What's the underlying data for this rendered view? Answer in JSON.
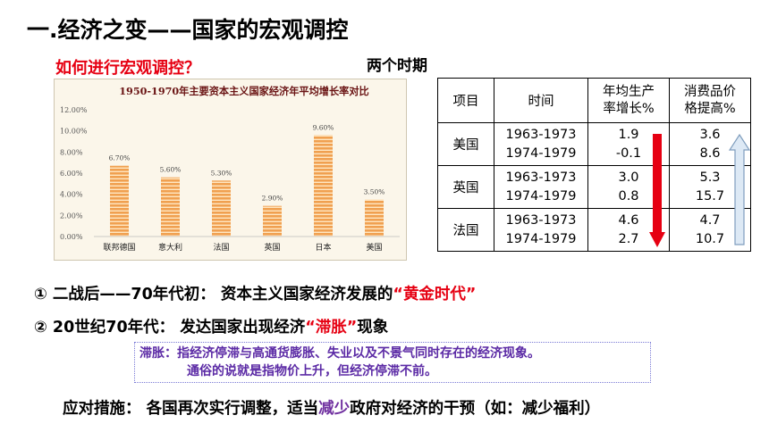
{
  "title": "一.经济之变——国家的宏观调控",
  "question": "如何进行宏观调控？",
  "periods_label": "两个时期",
  "chart_data": {
    "type": "bar",
    "title": "1950-1970年主要资本主义国家经济年平均增长率对比",
    "categories": [
      "联邦德国",
      "意大利",
      "法国",
      "英国",
      "日本",
      "美国"
    ],
    "values": [
      6.7,
      5.6,
      5.3,
      2.9,
      9.6,
      3.5
    ],
    "data_labels": [
      "6.70%",
      "5.60%",
      "5.30%",
      "2.90%",
      "9.60%",
      "3.50%"
    ],
    "yticks": [
      "0.00%",
      "2.00%",
      "4.00%",
      "6.00%",
      "8.00%",
      "10.00%",
      "12.00%"
    ],
    "ylim": [
      0,
      12
    ],
    "xlabel": "",
    "ylabel": "",
    "grid": false,
    "colors": {
      "bar": "#f0a050",
      "bar_stripe": "#ffe7c2",
      "background": "#fbf6ea"
    }
  },
  "table": {
    "headers": [
      "项目",
      "时间",
      "年均生产\n率增长%",
      "消费品价\n格提高%"
    ],
    "rows": [
      {
        "country": "美国",
        "years": [
          "1963-1973",
          "1974-1979"
        ],
        "growth": [
          "1.9",
          "-0.1"
        ],
        "price": [
          "3.6",
          "8.6"
        ]
      },
      {
        "country": "英国",
        "years": [
          "1963-1973",
          "1974-1979"
        ],
        "growth": [
          "3.0",
          "0.8"
        ],
        "price": [
          "5.3",
          "15.7"
        ]
      },
      {
        "country": "法国",
        "years": [
          "1963-1973",
          "1974-1979"
        ],
        "growth": [
          "4.6",
          "2.7"
        ],
        "price": [
          "4.7",
          "10.7"
        ]
      }
    ],
    "arrows": {
      "growth": "down",
      "price": "up",
      "growth_color": "#e60012",
      "price_color": "#dde9f5"
    }
  },
  "stage1": {
    "prefix": "① 二战后——70年代初： 资本主义国家经济发展的",
    "highlight": "“黄金时代”"
  },
  "stage2": {
    "prefix": "②  20世纪70年代：   发达国家出现经济",
    "highlight": "“滞胀”",
    "suffix": "现象"
  },
  "definition": {
    "line1": "滞胀：指经济停滞与高通货膨胀、失业以及不景气同时存在的经济现象。",
    "line2": "通俗的说就是指物价上升，但经济停滞不前。"
  },
  "measures": {
    "prefix": "应对措施： 各国再次实行调整，适当",
    "highlight": "减少",
    "suffix": "政府对经济的干预（如：减少福利）"
  }
}
